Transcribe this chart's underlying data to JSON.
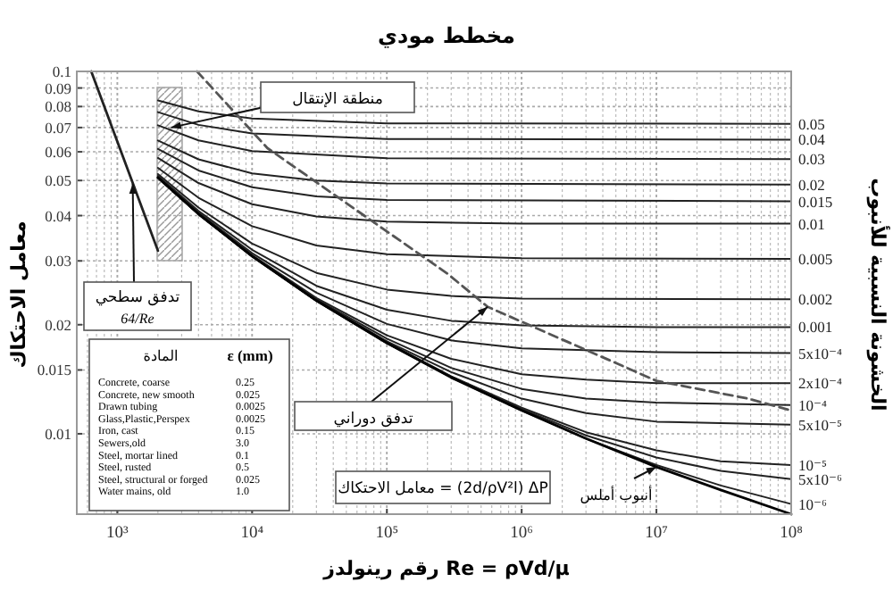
{
  "chart_data": [
    {
      "type": "line",
      "title": "مخطط مودي",
      "xlabel": "رقم رينولدز  Re = ρVd/μ",
      "ylabel": "معامل الاحتكاك",
      "y2label": "الخشونة النسبية للأنبوب",
      "log": "xy",
      "grid": true,
      "xlim": [
        500,
        100000000
      ],
      "ylim": [
        0.006,
        0.1
      ],
      "xticks": [
        {
          "value": 1000,
          "label": "10³"
        },
        {
          "value": 10000,
          "label": "10⁴"
        },
        {
          "value": 100000,
          "label": "10⁵"
        },
        {
          "value": 1000000,
          "label": "10⁶"
        },
        {
          "value": 10000000,
          "label": "10⁷"
        },
        {
          "value": 100000000,
          "label": "10⁸"
        }
      ],
      "yticks": [
        0.01,
        0.015,
        0.02,
        0.03,
        0.04,
        0.05,
        0.06,
        0.07,
        0.08,
        0.09,
        0.1
      ],
      "series": [
        {
          "name": "0.05",
          "color": "#222222",
          "x": [
            2000,
            4000,
            10000,
            100000,
            100000000
          ],
          "values": [
            0.0832,
            0.0776,
            0.0741,
            0.0719,
            0.0717
          ]
        },
        {
          "name": "0.04",
          "color": "#222222",
          "x": [
            2000,
            4000,
            10000,
            100000,
            100000000
          ],
          "values": [
            0.0772,
            0.0712,
            0.0674,
            0.0651,
            0.0648
          ]
        },
        {
          "name": "0.03",
          "color": "#222222",
          "x": [
            2000,
            4000,
            10000,
            100000,
            100000000
          ],
          "values": [
            0.071,
            0.0645,
            0.0603,
            0.0576,
            0.0573
          ]
        },
        {
          "name": "0.02",
          "color": "#222222",
          "x": [
            2000,
            4000,
            10000,
            30000,
            100000,
            100000000
          ],
          "values": [
            0.0645,
            0.0572,
            0.0523,
            0.05,
            0.0491,
            0.0487
          ]
        },
        {
          "name": "0.015",
          "color": "#222222",
          "x": [
            2000,
            4000,
            10000,
            30000,
            100000,
            100000000
          ],
          "values": [
            0.0611,
            0.0533,
            0.0479,
            0.0452,
            0.0442,
            0.0438
          ]
        },
        {
          "name": "0.01",
          "color": "#222222",
          "x": [
            2000,
            4000,
            10000,
            30000,
            100000,
            1000000,
            100000000
          ],
          "values": [
            0.0577,
            0.0492,
            0.043,
            0.0398,
            0.0385,
            0.038,
            0.038
          ]
        },
        {
          "name": "0.005",
          "color": "#222222",
          "x": [
            2000,
            4000,
            10000,
            30000,
            100000,
            1000000,
            100000000
          ],
          "values": [
            0.0542,
            0.0448,
            0.0374,
            0.0331,
            0.0313,
            0.0305,
            0.0304
          ]
        },
        {
          "name": "0.002",
          "color": "#222222",
          "x": [
            2000,
            4000,
            10000,
            30000,
            100000,
            300000,
            1000000,
            100000000
          ],
          "values": [
            0.0521,
            0.0421,
            0.0335,
            0.0278,
            0.025,
            0.024,
            0.0236,
            0.0235
          ]
        },
        {
          "name": "0.001",
          "color": "#222222",
          "x": [
            2000,
            4000,
            10000,
            30000,
            100000,
            300000,
            1000000,
            10000000,
            100000000
          ],
          "values": [
            0.0515,
            0.0412,
            0.0322,
            0.0256,
            0.022,
            0.0205,
            0.0199,
            0.0197,
            0.0197
          ]
        },
        {
          "name": "5x10⁻⁴",
          "color": "#222222",
          "x": [
            2000,
            4000,
            10000,
            30000,
            100000,
            300000,
            1000000,
            10000000,
            100000000
          ],
          "values": [
            0.0512,
            0.0408,
            0.0315,
            0.0245,
            0.0201,
            0.0181,
            0.0172,
            0.0168,
            0.0167
          ]
        },
        {
          "name": "2x10⁻⁴",
          "color": "#222222",
          "x": [
            2000,
            4000,
            10000,
            30000,
            100000,
            300000,
            1000000,
            3000000,
            10000000,
            100000000
          ],
          "values": [
            0.051,
            0.0406,
            0.0311,
            0.0237,
            0.0187,
            0.0161,
            0.0146,
            0.0141,
            0.0138,
            0.0138
          ]
        },
        {
          "name": "10⁻⁴",
          "color": "#222222",
          "x": [
            2000,
            4000,
            10000,
            30000,
            100000,
            300000,
            1000000,
            3000000,
            10000000,
            100000000
          ],
          "values": [
            0.0509,
            0.0405,
            0.031,
            0.0235,
            0.0183,
            0.0152,
            0.0133,
            0.0125,
            0.0122,
            0.012
          ]
        },
        {
          "name": "5x10⁻⁵",
          "color": "#222222",
          "x": [
            2000,
            4000,
            10000,
            30000,
            100000,
            300000,
            1000000,
            3000000,
            10000000,
            30000000,
            100000000
          ],
          "values": [
            0.0509,
            0.0404,
            0.0309,
            0.0234,
            0.018,
            0.0148,
            0.0125,
            0.0114,
            0.0108,
            0.0107,
            0.0106
          ]
        },
        {
          "name": "10⁻⁵",
          "color": "#222222",
          "x": [
            2000,
            4000,
            10000,
            30000,
            100000,
            300000,
            1000000,
            3000000,
            10000000,
            30000000,
            100000000
          ],
          "values": [
            0.0509,
            0.0404,
            0.0309,
            0.0233,
            0.0179,
            0.0144,
            0.0118,
            0.0101,
            0.009,
            0.0084,
            0.0082
          ]
        },
        {
          "name": "5x10⁻⁶",
          "color": "#222222",
          "x": [
            2000,
            4000,
            10000,
            30000,
            100000,
            300000,
            1000000,
            3000000,
            10000000,
            30000000,
            100000000
          ],
          "values": [
            0.0509,
            0.0404,
            0.0309,
            0.0233,
            0.0178,
            0.0144,
            0.0117,
            0.0099,
            0.0086,
            0.0079,
            0.0075
          ]
        },
        {
          "name": "10⁻⁶",
          "color": "#222222",
          "x": [
            2000,
            4000,
            10000,
            30000,
            100000,
            300000,
            1000000,
            3000000,
            10000000,
            30000000,
            100000000
          ],
          "values": [
            0.0509,
            0.0404,
            0.0309,
            0.0233,
            0.0178,
            0.0143,
            0.0116,
            0.0097,
            0.0082,
            0.0072,
            0.0064
          ]
        },
        {
          "color": "#000000",
          "x": [
            2000,
            4000,
            10000,
            30000,
            100000,
            300000,
            1000000,
            3000000,
            10000000,
            30000000,
            100000000
          ],
          "values": [
            0.0509,
            0.0404,
            0.0309,
            0.0233,
            0.0178,
            0.0143,
            0.0116,
            0.0097,
            0.0081,
            0.007,
            0.006
          ]
        },
        {
          "color": "#222222",
          "x": [
            640,
            2000
          ],
          "values": [
            0.1,
            0.032
          ]
        },
        {
          "color": "#555555",
          "line_style": "dashed",
          "x": [
            3900,
            13000,
            280000,
            560000,
            10000000,
            48000000,
            100000000
          ],
          "values": [
            0.1,
            0.0614,
            0.0277,
            0.0224,
            0.014,
            0.0125,
            0.0116
          ]
        }
      ],
      "annotations": [
        {
          "text": "منطقة الإنتقال",
          "x": 2500,
          "y": 0.07
        },
        {
          "text": "تدفق سطحي",
          "x": 1300,
          "y": 0.049
        },
        "64/Re",
        {
          "text": "تدفق دوراني",
          "x": 560000,
          "y": 0.0224
        },
        {
          "text": "أنبوب أملس",
          "x": 10000000,
          "y": 0.0081
        },
        "معامل الاحتكاك = (2d/ρV²l) ΔP"
      ]
    },
    {
      "type": "other",
      "annotations": [
        "المادة",
        "ε (mm)",
        "Concrete, coarse",
        "0.25",
        "Concrete, new smooth",
        "0.025",
        "Drawn tubing",
        "0.0025",
        "Glass,Plastic,Perspex",
        "0.0025",
        "Iron, cast",
        "0.15",
        "Sewers,old",
        "3.0",
        "Steel, mortar lined",
        "0.1",
        "Steel, rusted",
        "0.5",
        "Steel, structural or forged",
        "0.025",
        "Water mains, old",
        "1.0"
      ]
    }
  ]
}
